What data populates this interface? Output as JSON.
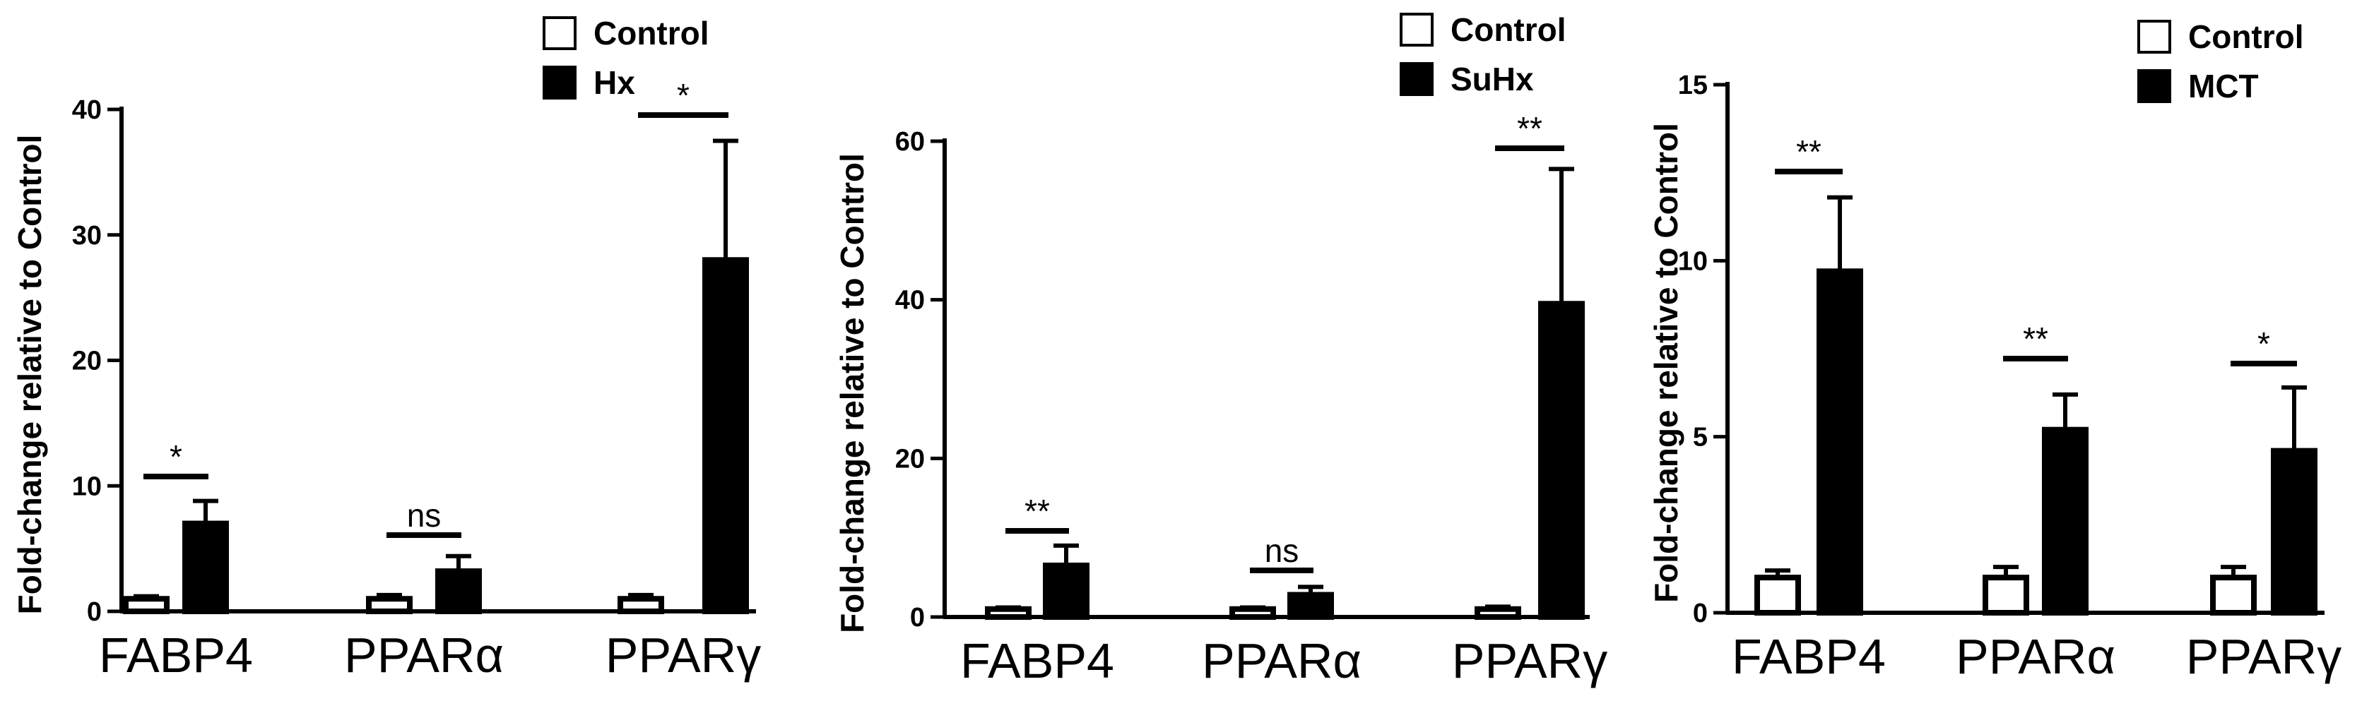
{
  "chart_data": [
    {
      "type": "bar",
      "categories": [
        "FABP4",
        "PPARα",
        "PPARγ"
      ],
      "ylabel": "Fold-change relative to Control",
      "ylim": [
        0,
        40
      ],
      "yticks": [
        0,
        10,
        20,
        30,
        40
      ],
      "legend_position": "top-right",
      "series": [
        {
          "name": "Control",
          "values": [
            1.0,
            1.0,
            1.0
          ],
          "errors": [
            0.2,
            0.3,
            0.3
          ],
          "color": "#ffffff"
        },
        {
          "name": "Hx",
          "values": [
            7.0,
            3.2,
            28.0
          ],
          "errors": [
            1.8,
            1.2,
            9.5
          ],
          "color": "#000000"
        }
      ],
      "significance": [
        "*",
        "ns",
        "*"
      ]
    },
    {
      "type": "bar",
      "categories": [
        "FABP4",
        "PPARα",
        "PPARγ"
      ],
      "ylabel": "Fold-change relative to Control",
      "ylim": [
        0,
        60
      ],
      "yticks": [
        0,
        20,
        40,
        60
      ],
      "legend_position": "top-right",
      "series": [
        {
          "name": "Control",
          "values": [
            1.0,
            1.0,
            1.0
          ],
          "errors": [
            0.2,
            0.2,
            0.3
          ],
          "color": "#ffffff"
        },
        {
          "name": "SuHx",
          "values": [
            6.5,
            2.8,
            39.5
          ],
          "errors": [
            2.5,
            1.0,
            17.0
          ],
          "color": "#000000"
        }
      ],
      "significance": [
        "**",
        "ns",
        "**"
      ]
    },
    {
      "type": "bar",
      "categories": [
        "FABP4",
        "PPARα",
        "PPARγ"
      ],
      "ylabel": "Fold-change relative to Control",
      "ylim": [
        0,
        15
      ],
      "yticks": [
        0,
        5,
        10,
        15
      ],
      "legend_position": "top-right",
      "series": [
        {
          "name": "Control",
          "values": [
            1.0,
            1.0,
            1.0
          ],
          "errors": [
            0.2,
            0.3,
            0.3
          ],
          "color": "#ffffff"
        },
        {
          "name": "MCT",
          "values": [
            9.7,
            5.2,
            4.6
          ],
          "errors": [
            2.1,
            1.0,
            1.8
          ],
          "color": "#000000"
        }
      ],
      "significance": [
        "**",
        "**",
        "*"
      ]
    }
  ]
}
